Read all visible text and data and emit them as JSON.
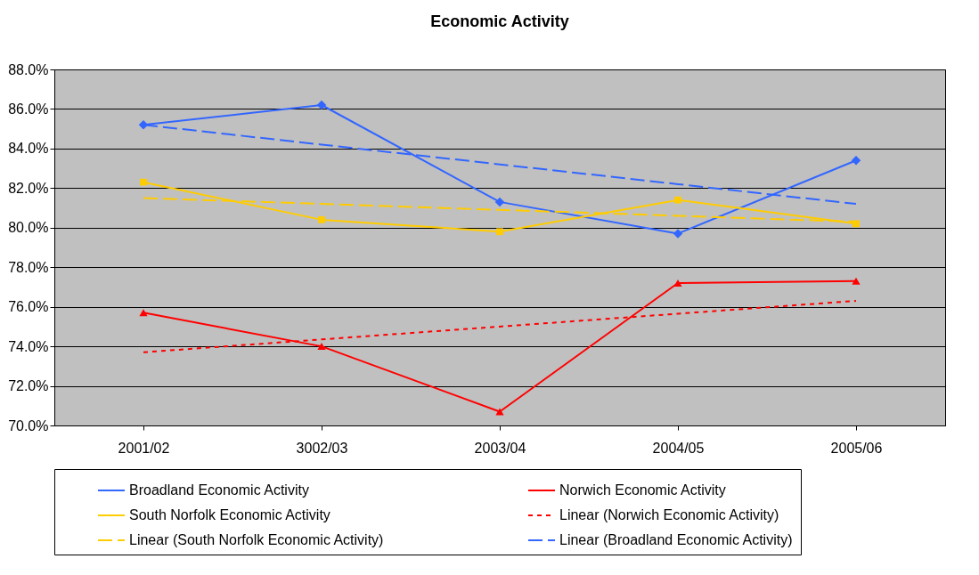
{
  "chart_data": {
    "type": "line",
    "title": "Economic Activity",
    "categories": [
      "2001/02",
      "3002/03",
      "2003/04",
      "2004/05",
      "2005/06"
    ],
    "ylim": [
      70,
      88
    ],
    "yticks": [
      {
        "value": 70,
        "label": "70.0%"
      },
      {
        "value": 72,
        "label": "72.0%"
      },
      {
        "value": 74,
        "label": "74.0%"
      },
      {
        "value": 76,
        "label": "76.0%"
      },
      {
        "value": 78,
        "label": "78.0%"
      },
      {
        "value": 80,
        "label": "80.0%"
      },
      {
        "value": 82,
        "label": "82.0%"
      },
      {
        "value": 84,
        "label": "84.0%"
      },
      {
        "value": 86,
        "label": "86.0%"
      },
      {
        "value": 88,
        "label": "88.0%"
      }
    ],
    "grid": "y",
    "legend": "bottom",
    "series": [
      {
        "name": "Broadland Economic Activity",
        "color": "#3366ff",
        "marker": "diamond",
        "line_style": "solid",
        "values": [
          85.2,
          86.2,
          81.3,
          79.7,
          83.4
        ]
      },
      {
        "name": "Norwich Economic Activity",
        "color": "#ff0000",
        "marker": "triangle",
        "line_style": "solid",
        "values": [
          75.7,
          74.0,
          70.7,
          77.2,
          77.3
        ]
      },
      {
        "name": "South Norfolk Economic Activity",
        "color": "#ffcc00",
        "marker": "square",
        "line_style": "solid",
        "values": [
          82.3,
          80.4,
          79.8,
          81.4,
          80.2
        ]
      },
      {
        "name": "Linear (Norwich Economic Activity)",
        "color": "#ff0000",
        "marker": "none",
        "line_style": "dotted",
        "values": [
          73.7,
          74.35,
          75.0,
          75.65,
          76.3
        ]
      },
      {
        "name": "Linear (South Norfolk Economic Activity)",
        "color": "#ffcc00",
        "marker": "none",
        "line_style": "dashed",
        "values": [
          81.5,
          81.2,
          80.9,
          80.6,
          80.3
        ]
      },
      {
        "name": "Linear (Broadland Economic Activity)",
        "color": "#3366ff",
        "marker": "none",
        "line_style": "dashed",
        "values": [
          85.2,
          84.2,
          83.2,
          82.2,
          81.2
        ]
      }
    ]
  }
}
